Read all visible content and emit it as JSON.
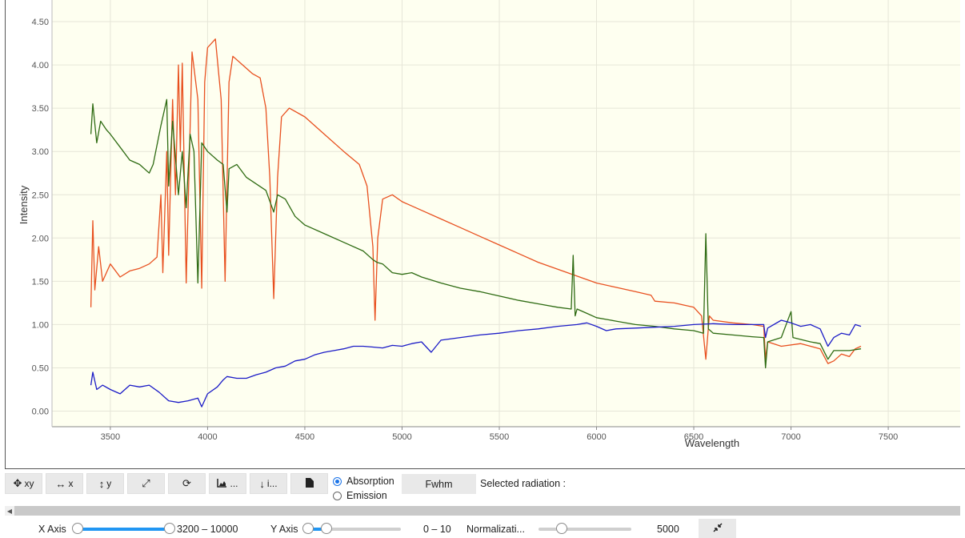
{
  "chart_data": {
    "type": "line",
    "xlabel": "Wavelength",
    "ylabel": "Intensity",
    "xlim": [
      3200,
      7870
    ],
    "ylim": [
      -0.18,
      4.75
    ],
    "x_ticks": [
      "3500",
      "4000",
      "4500",
      "5000",
      "5500",
      "6000",
      "6500",
      "7000",
      "7500"
    ],
    "y_ticks": [
      "0.00",
      "0.50",
      "1.00",
      "1.50",
      "2.00",
      "2.50",
      "3.00",
      "3.50",
      "4.00",
      "4.50"
    ],
    "grid": true,
    "background": "#fefff0",
    "series": [
      {
        "color": "#e8501f",
        "points": [
          [
            3400,
            1.2
          ],
          [
            3410,
            2.2
          ],
          [
            3420,
            1.4
          ],
          [
            3440,
            1.9
          ],
          [
            3460,
            1.5
          ],
          [
            3500,
            1.7
          ],
          [
            3550,
            1.55
          ],
          [
            3600,
            1.62
          ],
          [
            3650,
            1.65
          ],
          [
            3700,
            1.7
          ],
          [
            3740,
            1.78
          ],
          [
            3760,
            2.5
          ],
          [
            3770,
            1.6
          ],
          [
            3790,
            3.0
          ],
          [
            3800,
            1.8
          ],
          [
            3820,
            3.6
          ],
          [
            3835,
            2.5
          ],
          [
            3850,
            4.0
          ],
          [
            3860,
            3.0
          ],
          [
            3870,
            4.02
          ],
          [
            3890,
            1.48
          ],
          [
            3920,
            4.15
          ],
          [
            3950,
            3.6
          ],
          [
            3970,
            1.42
          ],
          [
            3985,
            3.8
          ],
          [
            4000,
            4.2
          ],
          [
            4040,
            4.3
          ],
          [
            4070,
            3.6
          ],
          [
            4090,
            1.5
          ],
          [
            4110,
            3.8
          ],
          [
            4130,
            4.1
          ],
          [
            4180,
            4.0
          ],
          [
            4230,
            3.9
          ],
          [
            4270,
            3.85
          ],
          [
            4300,
            3.5
          ],
          [
            4320,
            2.7
          ],
          [
            4340,
            1.3
          ],
          [
            4360,
            2.7
          ],
          [
            4380,
            3.4
          ],
          [
            4420,
            3.5
          ],
          [
            4500,
            3.4
          ],
          [
            4600,
            3.2
          ],
          [
            4700,
            3.0
          ],
          [
            4780,
            2.85
          ],
          [
            4820,
            2.6
          ],
          [
            4850,
            1.9
          ],
          [
            4861,
            1.05
          ],
          [
            4875,
            2.0
          ],
          [
            4900,
            2.45
          ],
          [
            4950,
            2.5
          ],
          [
            5000,
            2.42
          ],
          [
            5100,
            2.32
          ],
          [
            5200,
            2.22
          ],
          [
            5300,
            2.12
          ],
          [
            5400,
            2.02
          ],
          [
            5500,
            1.92
          ],
          [
            5600,
            1.82
          ],
          [
            5700,
            1.72
          ],
          [
            5800,
            1.64
          ],
          [
            5900,
            1.56
          ],
          [
            6000,
            1.48
          ],
          [
            6100,
            1.43
          ],
          [
            6200,
            1.38
          ],
          [
            6280,
            1.34
          ],
          [
            6300,
            1.27
          ],
          [
            6400,
            1.25
          ],
          [
            6500,
            1.2
          ],
          [
            6540,
            1.1
          ],
          [
            6562,
            0.6
          ],
          [
            6580,
            1.1
          ],
          [
            6600,
            1.05
          ],
          [
            6700,
            1.02
          ],
          [
            6800,
            1.0
          ],
          [
            6860,
            0.98
          ],
          [
            6869,
            0.6
          ],
          [
            6880,
            0.8
          ],
          [
            6950,
            0.75
          ],
          [
            7050,
            0.78
          ],
          [
            7150,
            0.72
          ],
          [
            7190,
            0.55
          ],
          [
            7220,
            0.58
          ],
          [
            7260,
            0.66
          ],
          [
            7300,
            0.63
          ],
          [
            7330,
            0.72
          ],
          [
            7360,
            0.75
          ]
        ]
      },
      {
        "color": "#2e6b12",
        "points": [
          [
            3400,
            3.2
          ],
          [
            3410,
            3.55
          ],
          [
            3430,
            3.1
          ],
          [
            3450,
            3.35
          ],
          [
            3480,
            3.25
          ],
          [
            3500,
            3.2
          ],
          [
            3550,
            3.05
          ],
          [
            3600,
            2.9
          ],
          [
            3650,
            2.85
          ],
          [
            3700,
            2.75
          ],
          [
            3720,
            2.85
          ],
          [
            3760,
            3.3
          ],
          [
            3790,
            3.6
          ],
          [
            3800,
            2.6
          ],
          [
            3820,
            3.35
          ],
          [
            3850,
            2.5
          ],
          [
            3870,
            3.0
          ],
          [
            3890,
            2.35
          ],
          [
            3910,
            3.2
          ],
          [
            3930,
            3.0
          ],
          [
            3950,
            1.48
          ],
          [
            3970,
            3.1
          ],
          [
            4000,
            3.0
          ],
          [
            4050,
            2.9
          ],
          [
            4080,
            2.85
          ],
          [
            4100,
            2.3
          ],
          [
            4110,
            2.8
          ],
          [
            4150,
            2.85
          ],
          [
            4200,
            2.7
          ],
          [
            4300,
            2.55
          ],
          [
            4340,
            2.3
          ],
          [
            4360,
            2.5
          ],
          [
            4400,
            2.45
          ],
          [
            4450,
            2.25
          ],
          [
            4500,
            2.15
          ],
          [
            4600,
            2.05
          ],
          [
            4700,
            1.95
          ],
          [
            4800,
            1.85
          ],
          [
            4850,
            1.75
          ],
          [
            4870,
            1.72
          ],
          [
            4900,
            1.7
          ],
          [
            4950,
            1.6
          ],
          [
            5000,
            1.58
          ],
          [
            5050,
            1.6
          ],
          [
            5100,
            1.55
          ],
          [
            5200,
            1.48
          ],
          [
            5300,
            1.42
          ],
          [
            5400,
            1.38
          ],
          [
            5500,
            1.33
          ],
          [
            5600,
            1.28
          ],
          [
            5700,
            1.24
          ],
          [
            5800,
            1.2
          ],
          [
            5870,
            1.18
          ],
          [
            5880,
            1.8
          ],
          [
            5890,
            1.1
          ],
          [
            5900,
            1.18
          ],
          [
            5950,
            1.13
          ],
          [
            6000,
            1.08
          ],
          [
            6100,
            1.04
          ],
          [
            6200,
            1.0
          ],
          [
            6300,
            0.98
          ],
          [
            6400,
            0.95
          ],
          [
            6500,
            0.93
          ],
          [
            6550,
            0.9
          ],
          [
            6562,
            2.05
          ],
          [
            6575,
            0.95
          ],
          [
            6600,
            0.9
          ],
          [
            6700,
            0.88
          ],
          [
            6800,
            0.86
          ],
          [
            6860,
            0.85
          ],
          [
            6869,
            0.5
          ],
          [
            6880,
            0.8
          ],
          [
            6950,
            0.85
          ],
          [
            7000,
            1.15
          ],
          [
            7010,
            0.85
          ],
          [
            7100,
            0.8
          ],
          [
            7150,
            0.78
          ],
          [
            7190,
            0.6
          ],
          [
            7220,
            0.7
          ],
          [
            7300,
            0.7
          ],
          [
            7360,
            0.72
          ]
        ]
      },
      {
        "color": "#1c1cc7",
        "points": [
          [
            3400,
            0.3
          ],
          [
            3410,
            0.45
          ],
          [
            3430,
            0.25
          ],
          [
            3460,
            0.3
          ],
          [
            3500,
            0.25
          ],
          [
            3550,
            0.2
          ],
          [
            3600,
            0.3
          ],
          [
            3650,
            0.28
          ],
          [
            3700,
            0.3
          ],
          [
            3750,
            0.22
          ],
          [
            3800,
            0.12
          ],
          [
            3850,
            0.1
          ],
          [
            3900,
            0.12
          ],
          [
            3950,
            0.15
          ],
          [
            3970,
            0.05
          ],
          [
            4000,
            0.2
          ],
          [
            4050,
            0.28
          ],
          [
            4080,
            0.36
          ],
          [
            4100,
            0.4
          ],
          [
            4150,
            0.38
          ],
          [
            4200,
            0.38
          ],
          [
            4250,
            0.42
          ],
          [
            4300,
            0.45
          ],
          [
            4350,
            0.5
          ],
          [
            4400,
            0.52
          ],
          [
            4450,
            0.58
          ],
          [
            4500,
            0.6
          ],
          [
            4550,
            0.65
          ],
          [
            4600,
            0.68
          ],
          [
            4650,
            0.7
          ],
          [
            4700,
            0.72
          ],
          [
            4750,
            0.75
          ],
          [
            4800,
            0.75
          ],
          [
            4850,
            0.74
          ],
          [
            4900,
            0.73
          ],
          [
            4950,
            0.76
          ],
          [
            5000,
            0.75
          ],
          [
            5050,
            0.78
          ],
          [
            5100,
            0.8
          ],
          [
            5150,
            0.68
          ],
          [
            5200,
            0.82
          ],
          [
            5300,
            0.85
          ],
          [
            5400,
            0.88
          ],
          [
            5500,
            0.9
          ],
          [
            5600,
            0.93
          ],
          [
            5700,
            0.95
          ],
          [
            5800,
            0.98
          ],
          [
            5900,
            1.0
          ],
          [
            5950,
            1.02
          ],
          [
            6000,
            0.98
          ],
          [
            6050,
            0.93
          ],
          [
            6100,
            0.95
          ],
          [
            6200,
            0.96
          ],
          [
            6300,
            0.97
          ],
          [
            6400,
            0.98
          ],
          [
            6500,
            1.0
          ],
          [
            6600,
            1.01
          ],
          [
            6700,
            1.0
          ],
          [
            6800,
            1.0
          ],
          [
            6860,
            1.0
          ],
          [
            6869,
            0.85
          ],
          [
            6880,
            0.96
          ],
          [
            6950,
            1.05
          ],
          [
            7000,
            1.02
          ],
          [
            7050,
            0.98
          ],
          [
            7100,
            1.0
          ],
          [
            7150,
            0.95
          ],
          [
            7190,
            0.75
          ],
          [
            7220,
            0.85
          ],
          [
            7260,
            0.9
          ],
          [
            7300,
            0.88
          ],
          [
            7330,
            1.0
          ],
          [
            7360,
            0.98
          ]
        ]
      }
    ]
  },
  "toolbar": {
    "xy_label": "xy",
    "x_label": "x",
    "y_label": "y",
    "chart_label": "...",
    "download_label": "i...",
    "absorption_label": "Absorption",
    "emission_label": "Emission",
    "fwhm_label": "Fwhm",
    "selected_radiation_label": "Selected radiation :"
  },
  "controls": {
    "x_axis_label": "X Axis",
    "x_axis_range": "3200 – 10000",
    "y_axis_label": "Y Axis",
    "y_axis_range": "0 – 10",
    "normalization_label": "Normalizati...",
    "normalization_value": "5000",
    "x_slider": {
      "low": 0.0,
      "high": 1.0
    },
    "y_slider": {
      "low": 0.0,
      "high": 0.2
    },
    "norm_slider": {
      "value": 0.25
    }
  }
}
